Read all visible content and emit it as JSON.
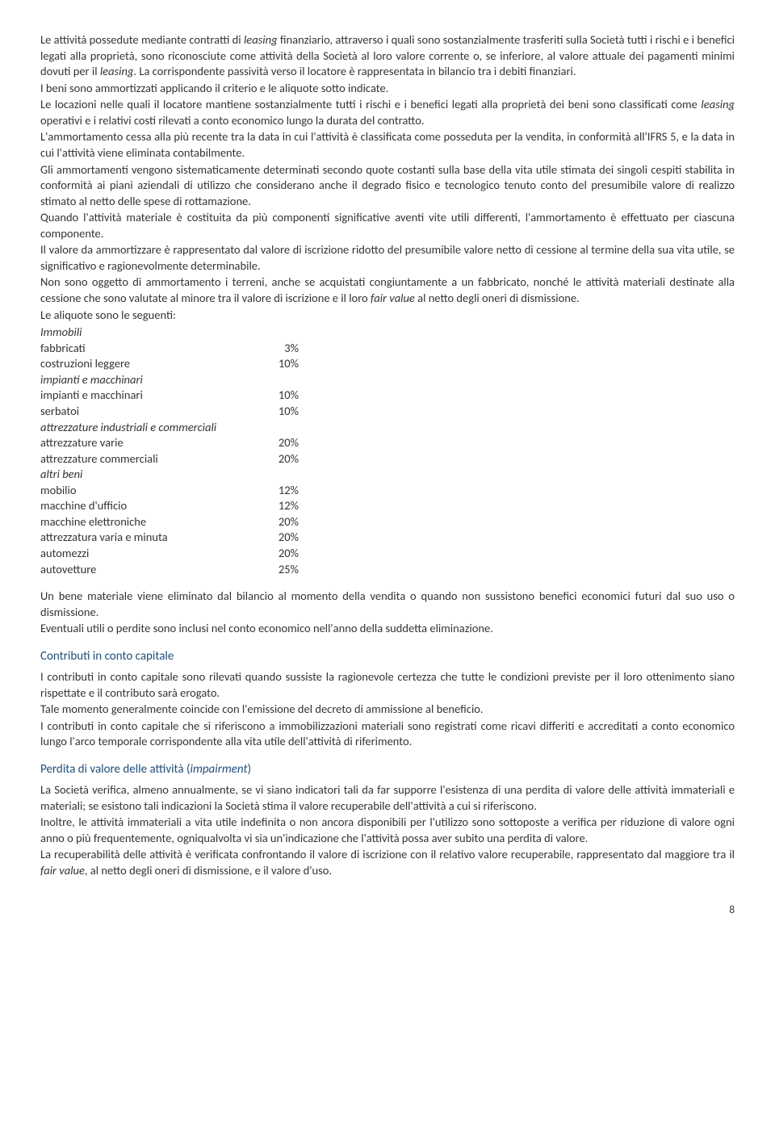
{
  "p1": "Le attività possedute mediante contratti di ",
  "p1_it1": "leasing",
  "p1b": " finanziario, attraverso i quali sono sostanzialmente trasferiti sulla Società tutti i rischi e i benefici legati alla proprietà, sono riconosciute come attività della Società al loro valore corrente o, se inferiore, al valore attuale dei pagamenti minimi dovuti per il ",
  "p1_it2": "leasing",
  "p1c": ". La corrispondente passività verso il locatore è rappresentata in bilancio tra i debiti finanziari.",
  "p2": "I beni sono ammortizzati applicando il criterio e le aliquote sotto indicate.",
  "p3a": "Le locazioni nelle quali il locatore mantiene sostanzialmente tutti i rischi e i benefici legati alla proprietà dei beni sono classificati come ",
  "p3_it": "leasing",
  "p3b": " operativi e i relativi costi rilevati a conto economico lungo la durata del contratto.",
  "p4": "L'ammortamento cessa alla più recente tra la data in cui l'attività è classificata come posseduta per la vendita, in conformità all'IFRS 5, e la data in cui l'attività viene eliminata contabilmente.",
  "p5": "Gli ammortamenti vengono sistematicamente determinati secondo quote costanti sulla base della vita utile stimata dei singoli cespiti stabilita in conformità ai piani aziendali di utilizzo che considerano anche il degrado fisico e tecnologico tenuto conto del presumibile valore di realizzo stimato al netto delle spese di rottamazione.",
  "p6": "Quando l'attività materiale è costituita da più componenti significative aventi vite utili differenti, l'ammortamento è effettuato per ciascuna componente.",
  "p7": "Il valore da ammortizzare è rappresentato dal valore di iscrizione ridotto del presumibile valore netto di cessione al termine della sua vita utile, se significativo e ragionevolmente determinabile.",
  "p8a": "Non sono oggetto di ammortamento i terreni, anche se acquistati congiuntamente a un fabbricato, nonché le attività materiali destinate alla cessione che sono valutate al minore tra il valore di iscrizione e il loro ",
  "p8_it": "fair value",
  "p8b": " al netto degli oneri di dismissione.",
  "p9": "Le aliquote sono le seguenti:",
  "rates": {
    "sec1": "Immobili",
    "r1_label": "fabbricati",
    "r1_val": "3%",
    "r2_label": "costruzioni leggere",
    "r2_val": "10%",
    "sec2": "impianti e macchinari",
    "r3_label": "impianti e macchinari",
    "r3_val": "10%",
    "r4_label": "serbatoi",
    "r4_val": "10%",
    "sec3": "attrezzature industriali e commerciali",
    "r5_label": "attrezzature varie",
    "r5_val": "20%",
    "r6_label": "attrezzature commerciali",
    "r6_val": "20%",
    "sec4": "altri beni",
    "r7_label": "mobilio",
    "r7_val": "12%",
    "r8_label": "macchine d'ufficio",
    "r8_val": "12%",
    "r9_label": "macchine elettroniche",
    "r9_val": "20%",
    "r10_label": "attrezzatura varia e minuta",
    "r10_val": "20%",
    "r11_label": "automezzi",
    "r11_val": "20%",
    "r12_label": "autovetture",
    "r12_val": "25%"
  },
  "p10": "Un bene materiale viene eliminato dal bilancio al momento della vendita o quando non sussistono benefici economici futuri dal suo uso o dismissione.",
  "p11": "Eventuali utili o perdite sono inclusi nel conto economico nell'anno della suddetta eliminazione.",
  "h1": "Contributi in conto capitale",
  "p12": "I contributi in conto capitale sono rilevati quando sussiste la ragionevole certezza che tutte le condizioni previste per il loro ottenimento siano rispettate e il contributo sarà erogato.",
  "p13": "Tale momento generalmente coincide con l'emissione del decreto di ammissione al beneficio.",
  "p14": "I contributi in conto capitale che si riferiscono a immobilizzazioni materiali sono registrati come ricavi differiti e accreditati a conto economico lungo l'arco temporale corrispondente alla vita utile dell'attività di riferimento.",
  "h2a": "Perdita di valore delle attività (",
  "h2_it": "impairment",
  "h2b": ")",
  "p15": "La Società verifica, almeno annualmente, se vi siano indicatori tali da far supporre l'esistenza di una perdita di valore delle attività immateriali e materiali; se esistono tali indicazioni la Società stima il valore recuperabile dell'attività a cui si riferiscono.",
  "p16": "Inoltre, le attività immateriali a vita utile indefinita o non ancora disponibili per l'utilizzo sono sottoposte a verifica per riduzione di valore ogni anno o più frequentemente, ogniqualvolta vi sia un'indicazione che l'attività possa aver subito una perdita di valore.",
  "p17a": "La recuperabilità delle attività è verificata confrontando il valore di iscrizione con il relativo valore recuperabile, rappresentato dal maggiore tra il ",
  "p17_it": "fair value",
  "p17b": ", al netto degli oneri di dismissione, e il valore d'uso.",
  "page_number": "8"
}
